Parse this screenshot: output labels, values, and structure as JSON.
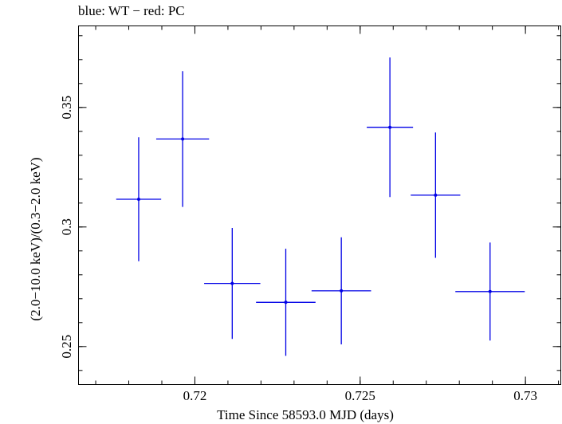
{
  "chart_data": {
    "type": "scatter",
    "title": "blue: WT − red: PC",
    "xlabel": "Time Since 58593.0 MJD (days)",
    "ylabel": "(2.0−10.0 keV)/(0.3−2.0 keV)",
    "xlim": [
      0.71648,
      0.73107
    ],
    "ylim": [
      0.2341,
      0.3841
    ],
    "xticks": [
      {
        "value": 0.72,
        "label": "0.72"
      },
      {
        "value": 0.725,
        "label": "0.725"
      },
      {
        "value": 0.73,
        "label": "0.73"
      }
    ],
    "yticks": [
      {
        "value": 0.25,
        "label": "0.25"
      },
      {
        "value": 0.3,
        "label": "0.3"
      },
      {
        "value": 0.35,
        "label": "0.35"
      }
    ],
    "x_minor_step": 0.001,
    "y_minor_step": 0.01,
    "series": [
      {
        "color": "#0000e6",
        "points": [
          {
            "x": 0.7183,
            "xerr": 0.00068,
            "y": 0.3116,
            "yerr": 0.0259
          },
          {
            "x": 0.71963,
            "xerr": 0.0008,
            "y": 0.3368,
            "yerr": 0.0284
          },
          {
            "x": 0.72113,
            "xerr": 0.00085,
            "y": 0.2764,
            "yerr": 0.0232
          },
          {
            "x": 0.72275,
            "xerr": 0.0009,
            "y": 0.2685,
            "yerr": 0.0224
          },
          {
            "x": 0.72443,
            "xerr": 0.0009,
            "y": 0.2733,
            "yerr": 0.0224
          },
          {
            "x": 0.7259,
            "xerr": 0.0007,
            "y": 0.3417,
            "yerr": 0.0292
          },
          {
            "x": 0.72728,
            "xerr": 0.00075,
            "y": 0.3133,
            "yerr": 0.0262
          },
          {
            "x": 0.72893,
            "xerr": 0.00105,
            "y": 0.273,
            "yerr": 0.0205
          }
        ]
      }
    ]
  }
}
